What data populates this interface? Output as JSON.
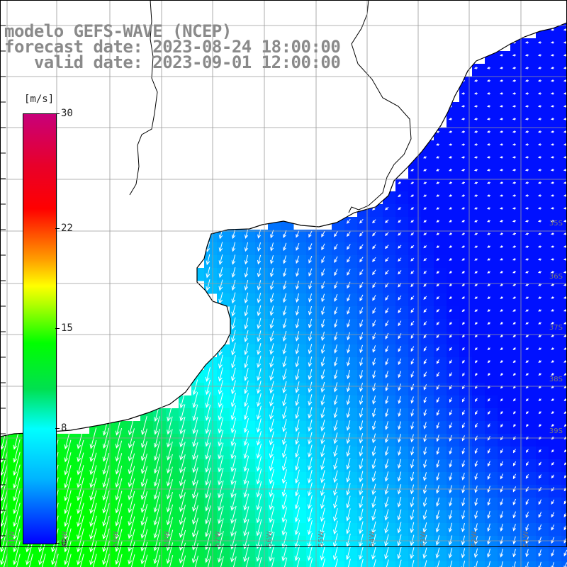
{
  "title": {
    "line1": "modelo GEFS-WAVE (NCEP)",
    "line2": "forecast date: 2023-08-24 18:00:00",
    "line3": "   valid date: 2023-09-01 12:00:00"
  },
  "colorbar": {
    "unit": "[m/s]",
    "ticks": [
      {
        "label": "30",
        "value": 30
      },
      {
        "label": "22",
        "value": 22
      },
      {
        "label": "15",
        "value": 15
      },
      {
        "label": "8",
        "value": 8
      },
      {
        "label": "0",
        "value": 0
      }
    ],
    "colors": {
      "min": "#0000ff",
      "light_blue": "#00b4ff",
      "cyan": "#00ffff",
      "green": "#00ff00",
      "yellow": "#ffff00",
      "orange": "#ffa000",
      "red": "#ff0000",
      "max": "#c8007a"
    }
  },
  "lat_labels": [
    "35S",
    "36S",
    "37S",
    "38S",
    "39S"
  ],
  "lon_labels": [
    "61W",
    "60W",
    "59W",
    "58W",
    "57W",
    "56W",
    "55W",
    "54W",
    "53W",
    "52W",
    "51W"
  ],
  "map_colors": {
    "land": "#ffffff",
    "coastline": "#000000",
    "grid": "#999999",
    "arrow": "#ffffff"
  },
  "chart_data": {
    "type": "heatmap",
    "title": "modelo GEFS-WAVE (NCEP)",
    "variable_unit": "m/s",
    "range": [
      0,
      30
    ],
    "description_fields": {
      "southwest_speed_ms": 11,
      "center_speed_ms": 8,
      "east_speed_ms": 2
    }
  }
}
